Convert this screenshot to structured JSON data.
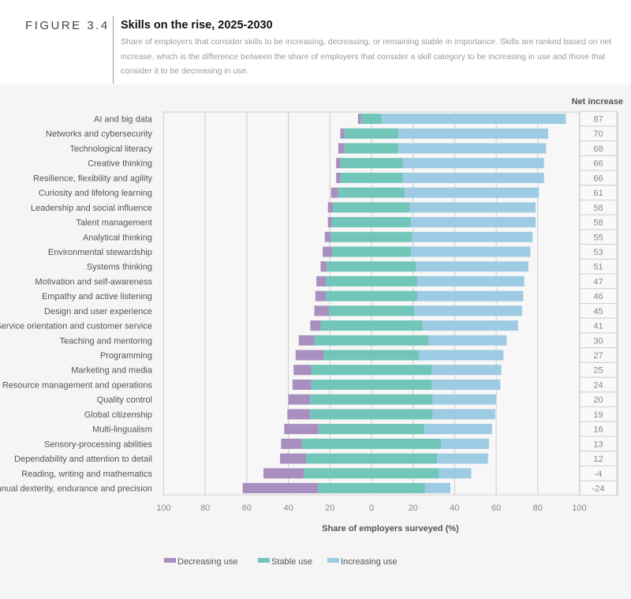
{
  "header": {
    "figure_label": "FIGURE 3.4",
    "title": "Skills on the rise, 2025-2030",
    "subtitle": "Share of employers that consider skills to be increasing, decreasing, or remaining stable in importance. Skills are ranked based on net increase, which is the difference between the share of employers that consider a skill category to be increasing in use and those that consider it to be decreasing in use."
  },
  "chart_data": {
    "type": "bar",
    "orientation": "horizontal-diverging-stacked",
    "xlabel": "Share of employers surveyed (%)",
    "xlim": [
      -100,
      100
    ],
    "xticks": [
      "100",
      "80",
      "60",
      "40",
      "20",
      "0",
      "20",
      "40",
      "60",
      "80",
      "100"
    ],
    "grid": true,
    "legend_position": "bottom-left",
    "net_column_header": "Net increase",
    "colors": {
      "decreasing": "#a98fbf",
      "stable": "#72c5b9",
      "increasing": "#9ecbe4"
    },
    "categories": [
      "AI and big data",
      "Networks and cybersecurity",
      "Technological literacy",
      "Creative thinking",
      "Resilience, flexibility and agility",
      "Curiosity and lifelong learning",
      "Leadership and social influence",
      "Talent management",
      "Analytical thinking",
      "Environmental stewardship",
      "Systems thinking",
      "Motivation and self-awareness",
      "Empathy and active listening",
      "Design and user experience",
      "Service orientation and customer service",
      "Teaching and mentoring",
      "Programming",
      "Marketing and media",
      "Resource management and operations",
      "Quality control",
      "Global citizenship",
      "Multi-lingualism",
      "Sensory-processing abilities",
      "Dependability and attention to detail",
      "Reading, writing and mathematics",
      "Manual dexterity, endurance and precision"
    ],
    "series": [
      {
        "name": "Decreasing use",
        "values": [
          1.5,
          2,
          3,
          2,
          2,
          3.5,
          2.5,
          2,
          3,
          4.5,
          3,
          4.5,
          5,
          7,
          5,
          7.5,
          13.5,
          8.5,
          9,
          10.5,
          11,
          16.5,
          10,
          12.5,
          19.5,
          36.25
        ]
      },
      {
        "name": "Stable use",
        "values": [
          10,
          26,
          26,
          30,
          30,
          32,
          37,
          38,
          39,
          38,
          43,
          44,
          44,
          41,
          49,
          55,
          46,
          58,
          58,
          59,
          59,
          51,
          67,
          63,
          65,
          51.5
        ]
      },
      {
        "name": "Increasing use",
        "values": [
          88.5,
          72,
          71,
          68,
          68,
          64.5,
          60.5,
          60,
          58,
          57.5,
          54,
          51.5,
          51,
          52,
          46,
          37.5,
          40.5,
          33.5,
          33,
          30.5,
          30,
          32.5,
          23,
          24.5,
          15.5,
          12.25
        ]
      }
    ],
    "net_increase": [
      "87",
      "70",
      "68",
      "66",
      "66",
      "61",
      "58",
      "58",
      "55",
      "53",
      "51",
      "47",
      "46",
      "45",
      "41",
      "30",
      "27",
      "25",
      "24",
      "20",
      "19",
      "16",
      "13",
      "12",
      "-4",
      "-24"
    ]
  }
}
